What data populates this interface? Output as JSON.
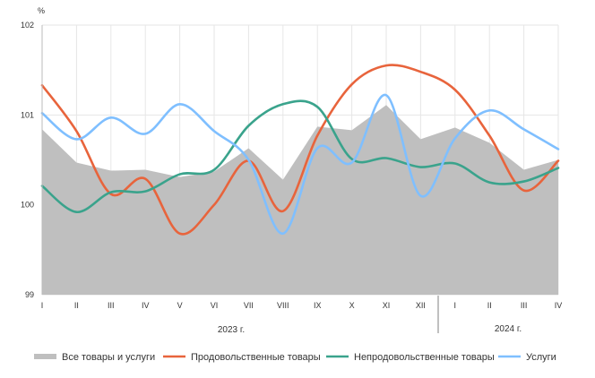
{
  "chart_data": {
    "type": "line",
    "unit_label": "%",
    "ylim": [
      99,
      102
    ],
    "yticks": [
      "99",
      "100",
      "101",
      "102"
    ],
    "categories": [
      "I",
      "II",
      "III",
      "IV",
      "V",
      "VI",
      "VII",
      "VIII",
      "IX",
      "X",
      "XI",
      "XII",
      "I",
      "II",
      "III",
      "IV"
    ],
    "year_labels": [
      {
        "label": "2023 г."
      },
      {
        "label": "2024 г."
      }
    ],
    "grid": true,
    "legend_position": "bottom",
    "series": [
      {
        "name": "Все товары и услуги",
        "kind": "area",
        "color": "#bfbfbf",
        "values": [
          100.84,
          100.47,
          100.38,
          100.39,
          100.31,
          100.37,
          100.63,
          100.28,
          100.87,
          100.83,
          101.11,
          100.73,
          100.86,
          100.69,
          100.39,
          100.5
        ]
      },
      {
        "name": "Продовольственные товары",
        "kind": "line",
        "color": "#e8643c",
        "values": [
          101.33,
          100.82,
          100.12,
          100.29,
          99.68,
          100.0,
          100.49,
          99.93,
          100.77,
          101.34,
          101.55,
          101.48,
          101.28,
          100.77,
          100.16,
          100.49
        ]
      },
      {
        "name": "Непродовольственные товары",
        "kind": "line",
        "color": "#3aa38c",
        "values": [
          100.21,
          99.92,
          100.14,
          100.15,
          100.34,
          100.39,
          100.88,
          101.12,
          101.09,
          100.51,
          100.52,
          100.42,
          100.46,
          100.25,
          100.26,
          100.41
        ]
      },
      {
        "name": "Услуги",
        "kind": "line",
        "color": "#7fbfff",
        "values": [
          101.02,
          100.73,
          100.97,
          100.79,
          101.12,
          100.82,
          100.5,
          99.68,
          100.63,
          100.47,
          101.22,
          100.1,
          100.74,
          101.05,
          100.84,
          100.62
        ]
      }
    ]
  }
}
